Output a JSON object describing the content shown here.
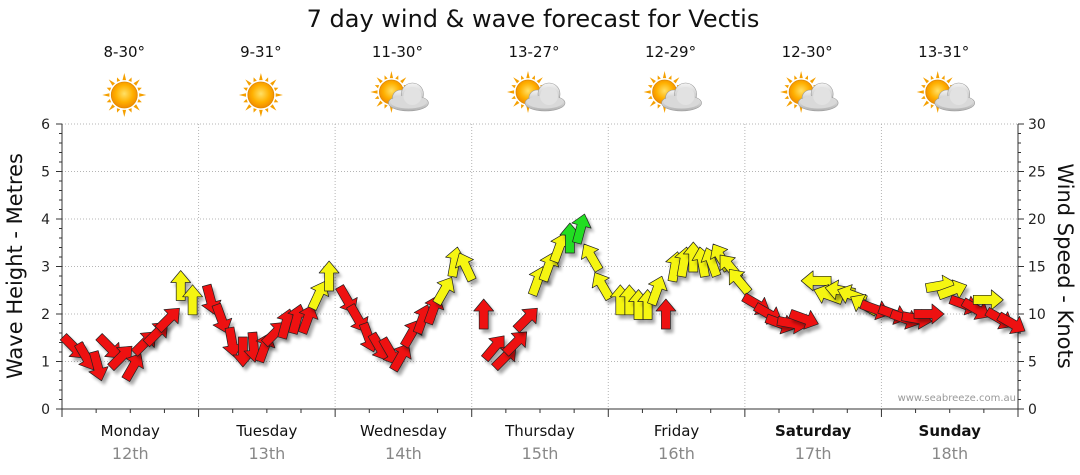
{
  "chart_data": {
    "type": "scatter",
    "title": "7 day wind & wave forecast for Vectis",
    "ylabel_left": "Wave Height - Metres",
    "ylabel_right": "Wind Speed - Knots",
    "ylim_left": [
      0,
      6
    ],
    "ylim_right": [
      0,
      30
    ],
    "yticks_left": [
      "0",
      "1",
      "2",
      "3",
      "4",
      "5",
      "6"
    ],
    "yticks_right": [
      "0",
      "5",
      "10",
      "15",
      "20",
      "25",
      "30"
    ],
    "grid": true,
    "watermark": "www.seabreeze.com.au",
    "days": [
      {
        "name": "Monday",
        "date": "12th",
        "temp": "8-30°",
        "weather": "sunny",
        "bold": false
      },
      {
        "name": "Tuesday",
        "date": "13th",
        "temp": "9-31°",
        "weather": "sunny",
        "bold": false
      },
      {
        "name": "Wednesday",
        "date": "14th",
        "temp": "11-30°",
        "weather": "partly-cloudy",
        "bold": false
      },
      {
        "name": "Thursday",
        "date": "15th",
        "temp": "13-27°",
        "weather": "partly-cloudy",
        "bold": false
      },
      {
        "name": "Friday",
        "date": "16th",
        "temp": "12-29°",
        "weather": "partly-cloudy",
        "bold": false
      },
      {
        "name": "Saturday",
        "date": "17th",
        "temp": "12-30°",
        "weather": "partly-cloudy",
        "bold": true
      },
      {
        "name": "Sunday",
        "date": "18th",
        "temp": "13-31°",
        "weather": "partly-cloudy",
        "bold": true
      }
    ],
    "color_scale": {
      "red": "#ee1111",
      "yellow": "#f5f511",
      "green": "#22dd22"
    },
    "series": [
      {
        "name": "Wind",
        "points_per_day": 8,
        "days": [
          {
            "day": "Monday",
            "y": [
              1.3,
              1.1,
              0.9,
              1.3,
              1.1,
              0.9,
              1.4,
              1.6,
              1.9,
              2.6,
              2.3
            ],
            "dir_deg": [
              135,
              150,
              165,
              135,
              45,
              30,
              45,
              45,
              45,
              0,
              0
            ],
            "color": [
              "red",
              "red",
              "red",
              "red",
              "red",
              "red",
              "red",
              "red",
              "red",
              "yellow",
              "yellow"
            ]
          },
          {
            "day": "Tuesday",
            "y": [
              2.3,
              1.9,
              1.4,
              1.2,
              1.3,
              1.3,
              1.6,
              1.8,
              1.9,
              1.9,
              2.4,
              2.8
            ],
            "dir_deg": [
              165,
              160,
              170,
              180,
              175,
              20,
              45,
              15,
              15,
              20,
              25,
              0
            ],
            "color": [
              "red",
              "red",
              "red",
              "red",
              "red",
              "red",
              "red",
              "red",
              "red",
              "red",
              "yellow",
              "yellow"
            ]
          },
          {
            "day": "Wednesday",
            "y": [
              2.3,
              1.9,
              1.5,
              1.3,
              1.2,
              1.1,
              1.6,
              1.9,
              2.1,
              2.5,
              3.1,
              3.0
            ],
            "dir_deg": [
              150,
              150,
              160,
              150,
              150,
              30,
              30,
              20,
              20,
              30,
              10,
              335
            ],
            "color": [
              "red",
              "red",
              "red",
              "red",
              "red",
              "red",
              "red",
              "red",
              "red",
              "yellow",
              "yellow",
              "yellow"
            ]
          },
          {
            "day": "Thursday",
            "y": [
              2.0,
              1.3,
              1.1,
              1.4,
              1.9,
              2.7,
              3.0,
              3.4,
              3.6,
              3.8,
              3.2,
              2.6
            ],
            "dir_deg": [
              0,
              40,
              45,
              45,
              45,
              20,
              20,
              20,
              0,
              15,
              330,
              330
            ],
            "color": [
              "red",
              "red",
              "red",
              "red",
              "red",
              "yellow",
              "yellow",
              "yellow",
              "green",
              "green",
              "yellow",
              "yellow"
            ]
          },
          {
            "day": "Friday",
            "y": [
              2.3,
              2.3,
              2.2,
              2.2,
              2.5,
              2.0,
              3.0,
              3.1,
              3.2,
              3.1,
              3.1,
              3.2,
              3.0,
              2.7
            ],
            "dir_deg": [
              0,
              0,
              0,
              0,
              20,
              0,
              10,
              10,
              0,
              350,
              340,
              330,
              320,
              320
            ],
            "color": [
              "yellow",
              "yellow",
              "yellow",
              "yellow",
              "yellow",
              "red",
              "yellow",
              "yellow",
              "yellow",
              "yellow",
              "yellow",
              "yellow",
              "yellow",
              "yellow"
            ]
          },
          {
            "day": "Saturday",
            "y": [
              2.2,
              2.0,
              1.8,
              1.8,
              1.9,
              2.7,
              2.4,
              2.5,
              2.4,
              2.2,
              2.1
            ],
            "dir_deg": [
              120,
              120,
              110,
              100,
              110,
              270,
              290,
              280,
              290,
              300,
              110
            ],
            "color": [
              "red",
              "red",
              "red",
              "red",
              "red",
              "yellow",
              "yellow",
              "yellow",
              "yellow",
              "yellow",
              "red"
            ]
          },
          {
            "day": "Sunday",
            "y": [
              2.0,
              1.9,
              1.9,
              2.0,
              2.6,
              2.5,
              2.2,
              2.1,
              2.3,
              1.9,
              1.8
            ],
            "dir_deg": [
              110,
              110,
              100,
              90,
              80,
              70,
              110,
              120,
              90,
              120,
              120
            ],
            "color": [
              "red",
              "red",
              "red",
              "red",
              "yellow",
              "yellow",
              "red",
              "red",
              "yellow",
              "red",
              "red"
            ]
          }
        ]
      }
    ]
  }
}
